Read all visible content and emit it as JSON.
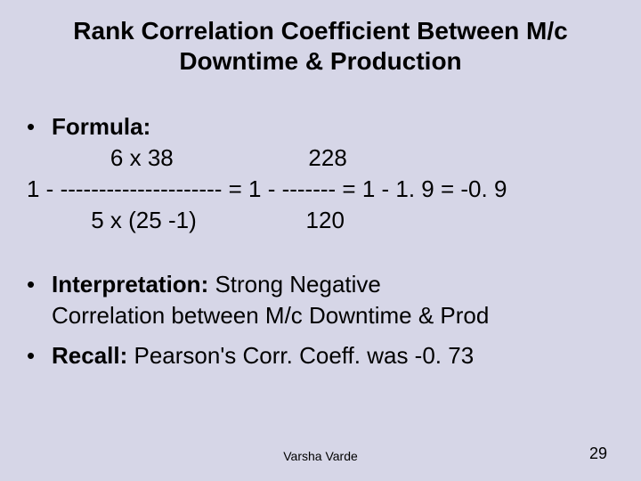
{
  "slide": {
    "title_line1": "Rank Correlation Coefficient Between M/c",
    "title_line2": "Downtime & Production",
    "formula_label": "Formula:",
    "formula_row1": "             6 x 38                     228",
    "formula_row2": "1 - --------------------- = 1 - ------- = 1 - 1. 9 = -0. 9",
    "formula_row3": "          5 x (25 -1)                 120",
    "interpretation_label": "Interpretation: ",
    "interpretation_text1": "Strong Negative",
    "interpretation_text2": "Correlation between M/c Downtime & Prod",
    "recall_label": "Recall: ",
    "recall_text": "Pearson's Corr. Coeff. was -0. 73",
    "footer_author": "Varsha Varde",
    "page_number": "29"
  },
  "style": {
    "background_color": "#d6d6e7",
    "text_color": "#000000",
    "title_fontsize": 28,
    "body_fontsize": 26,
    "footer_fontsize": 14,
    "pagenum_fontsize": 18,
    "font_family": "Arial, sans-serif"
  }
}
